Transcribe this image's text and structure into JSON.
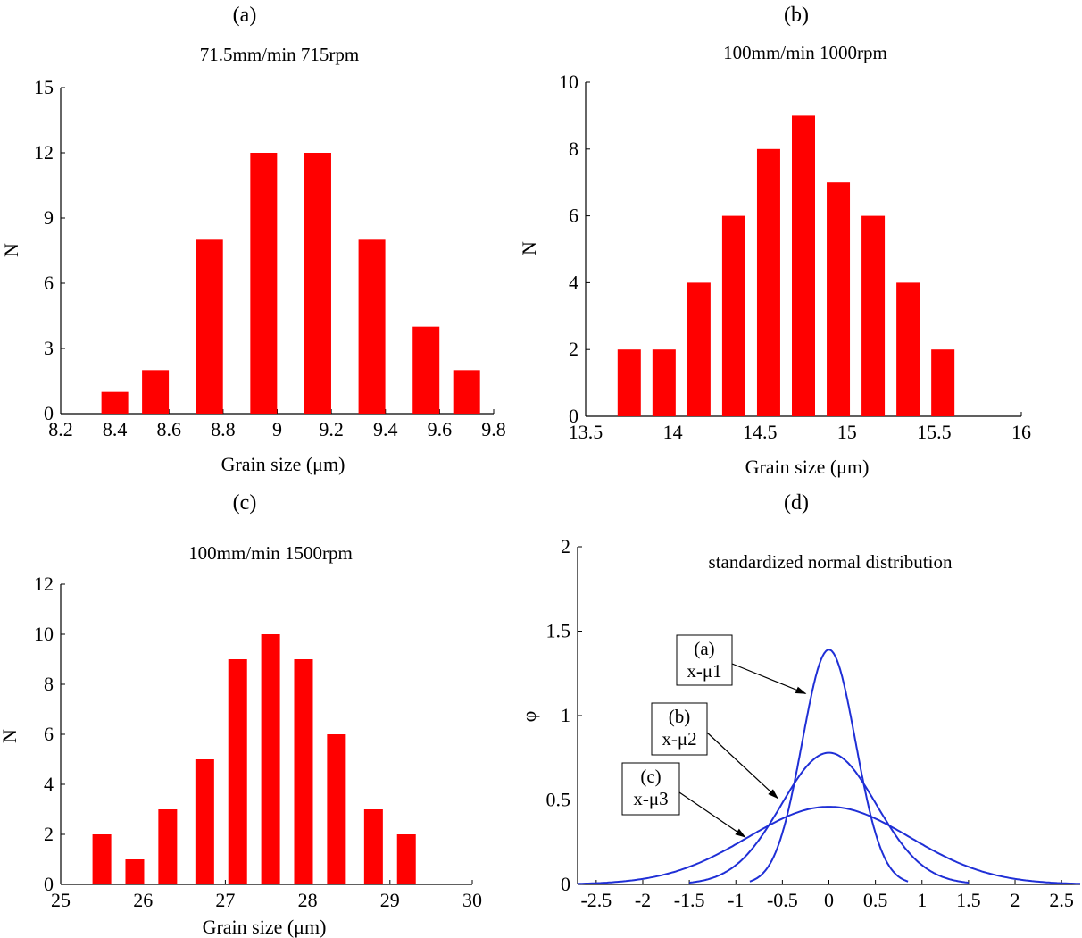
{
  "panels": [
    {
      "label": "(a)",
      "chart_data": {
        "type": "bar",
        "title": "71.5mm/min 715rpm",
        "xlabel": "Grain size (μm)",
        "ylabel": "N",
        "x": [
          8.4,
          8.55,
          8.75,
          8.95,
          9.15,
          9.35,
          9.55,
          9.7
        ],
        "values": [
          1,
          2,
          8,
          12,
          12,
          8,
          4,
          2
        ],
        "xlim": [
          8.2,
          9.8
        ],
        "ylim": [
          0,
          15
        ],
        "xticks": [
          "8.2",
          "8.4",
          "8.6",
          "8.8",
          "9",
          "9.2",
          "9.4",
          "9.6",
          "9.8"
        ],
        "yticks": [
          "0",
          "3",
          "6",
          "9",
          "12",
          "15"
        ],
        "color": "#ff0000"
      }
    },
    {
      "label": "(b)",
      "chart_data": {
        "type": "bar",
        "title": "100mm/min 1000rpm",
        "xlabel": "Grain size (μm)",
        "ylabel": "N",
        "x": [
          13.75,
          13.95,
          14.15,
          14.35,
          14.55,
          14.75,
          14.95,
          15.15,
          15.35,
          15.55,
          15.75
        ],
        "values": [
          2,
          2,
          4,
          6,
          8,
          9,
          7,
          6,
          4,
          2,
          0
        ],
        "xlim": [
          13.5,
          16
        ],
        "ylim": [
          0,
          10
        ],
        "xticks": [
          "13.5",
          "14",
          "14.5",
          "15",
          "15.5",
          "16"
        ],
        "yticks": [
          "0",
          "2",
          "4",
          "6",
          "8",
          "10"
        ],
        "color": "#ff0000"
      }
    },
    {
      "label": "(c)",
      "chart_data": {
        "type": "bar",
        "title": "100mm/min 1500rpm",
        "xlabel": "Grain size (μm)",
        "ylabel": "N",
        "x": [
          25.5,
          25.9,
          26.3,
          26.75,
          27.15,
          27.55,
          27.95,
          28.35,
          28.8,
          29.2
        ],
        "values": [
          2,
          1,
          3,
          5,
          9,
          10,
          9,
          6,
          3,
          2
        ],
        "xlim": [
          25,
          30
        ],
        "ylim": [
          0,
          12
        ],
        "xticks": [
          "25",
          "26",
          "27",
          "28",
          "29",
          "30"
        ],
        "yticks": [
          "0",
          "2",
          "4",
          "6",
          "8",
          "10",
          "12"
        ],
        "color": "#ff0000"
      }
    },
    {
      "label": "(d)",
      "chart_data": {
        "type": "line",
        "title": "standardized normal distribution",
        "xlabel": "",
        "ylabel": "φ",
        "xlim": [
          -2.7,
          2.7
        ],
        "ylim": [
          0,
          2
        ],
        "xticks": [
          "-2.5",
          "-2",
          "-1.5",
          "-1",
          "-0.5",
          "0",
          "0.5",
          "1",
          "1.5",
          "2",
          "2.5"
        ],
        "yticks": [
          "0",
          "0.5",
          "1",
          "1.5",
          "2"
        ],
        "color": "#1f2fd6",
        "series": [
          {
            "sigma": 0.287,
            "range": [
              -0.85,
              0.85
            ],
            "peak": 1.39
          },
          {
            "sigma": 0.51,
            "range": [
              -1.5,
              1.5
            ],
            "peak": 0.78
          },
          {
            "sigma": 0.87,
            "range": [
              -2.7,
              2.7
            ],
            "peak": 0.46
          }
        ],
        "annotations": [
          {
            "lines": [
              "(a)",
              "x-μ1"
            ],
            "series_index": 0,
            "arrow_to": [
              -0.25,
              1.13
            ]
          },
          {
            "lines": [
              "(b)",
              "x-μ2"
            ],
            "series_index": 1,
            "arrow_to": [
              -0.55,
              0.51
            ]
          },
          {
            "lines": [
              "(c)",
              "x-μ3"
            ],
            "series_index": 2,
            "arrow_to": [
              -0.9,
              0.28
            ]
          }
        ]
      }
    }
  ]
}
